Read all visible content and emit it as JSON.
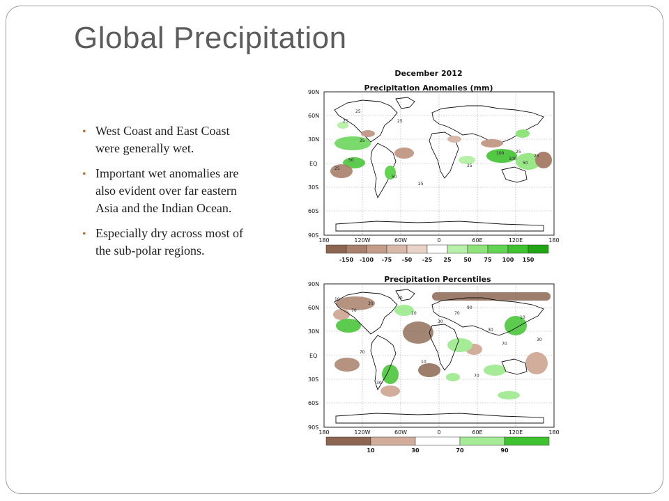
{
  "slide": {
    "title": "Global Precipitation",
    "bullets": [
      "West Coast and East Coast were generally wet.",
      "Important wet anomalies are also evident over far eastern Asia and the Indian Ocean.",
      "Especially dry across most of the sub-polar regions."
    ]
  },
  "maps": {
    "anomalies": {
      "title_line1": "December 2012",
      "title_line2": "Precipitation Anomalies (mm)",
      "lat_labels": [
        "90N",
        "60N",
        "30N",
        "EQ",
        "30S",
        "60S",
        "90S"
      ],
      "lon_labels": [
        "180",
        "120W",
        "60W",
        "0",
        "60E",
        "120E",
        "180"
      ],
      "legend_values": [
        "-150",
        "-100",
        "-75",
        "-50",
        "-25",
        "25",
        "50",
        "75",
        "100",
        "150"
      ],
      "legend_colors": [
        "#8c6651",
        "#a9806b",
        "#c49c8a",
        "#d8b8a9",
        "#e9d3c8",
        "#ffffff",
        "#b7f0a8",
        "#8ee47a",
        "#63d451",
        "#3fc22f",
        "#22a514"
      ],
      "contour_labels": [
        "25",
        "25",
        "50",
        "25",
        "100",
        "25",
        "25",
        "50",
        "25",
        "100",
        "50",
        "25",
        "25",
        "25"
      ]
    },
    "percentiles": {
      "title": "Precipitation Percentiles",
      "lat_labels": [
        "90N",
        "60N",
        "30N",
        "EQ",
        "30S",
        "60S",
        "90S"
      ],
      "lon_labels": [
        "180",
        "120W",
        "60W",
        "0",
        "60E",
        "120E",
        "180"
      ],
      "legend_values": [
        "10",
        "30",
        "70",
        "90"
      ],
      "legend_colors": [
        "#8c6651",
        "#d2ad9c",
        "#ffffff",
        "#a6eb98",
        "#3fc22f"
      ],
      "contour_labels": [
        "10",
        "70",
        "30",
        "70",
        "10",
        "30",
        "70",
        "90",
        "30",
        "70",
        "10",
        "30",
        "70",
        "30",
        "10",
        "70"
      ]
    }
  }
}
